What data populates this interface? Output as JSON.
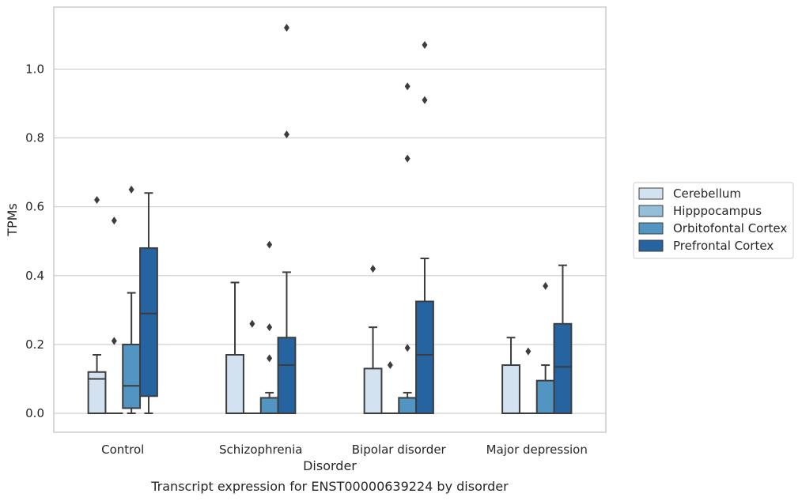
{
  "caption": "Transcript expression for ENST00000639224 by disorder",
  "chart_data": {
    "type": "box",
    "xlabel": "Disorder",
    "ylabel": "TPMs",
    "categories": [
      "Control",
      "Schizophrenia",
      "Bipolar disorder",
      "Major depression"
    ],
    "ylim": [
      -0.055,
      1.18
    ],
    "yticks": [
      0.0,
      0.2,
      0.4,
      0.6,
      0.8,
      1.0
    ],
    "ytick_labels": [
      "0.0",
      "0.2",
      "0.4",
      "0.6",
      "0.8",
      "1.0"
    ],
    "grid": true,
    "legend_position": "right",
    "colors": [
      "#d3e2f1",
      "#93bfdb",
      "#5295c3",
      "#2563a1"
    ],
    "series": [
      {
        "name": "Cerebellum",
        "boxes": [
          {
            "whislo": 0,
            "q1": 0,
            "med": 0.1,
            "q3": 0.12,
            "whishi": 0.17,
            "fliers": [
              0.62
            ]
          },
          {
            "whislo": 0,
            "q1": 0,
            "med": 0.0,
            "q3": 0.17,
            "whishi": 0.38,
            "fliers": []
          },
          {
            "whislo": 0,
            "q1": 0,
            "med": 0.0,
            "q3": 0.13,
            "whishi": 0.25,
            "fliers": [
              0.42
            ]
          },
          {
            "whislo": 0,
            "q1": 0,
            "med": 0.0,
            "q3": 0.14,
            "whishi": 0.22,
            "fliers": []
          }
        ]
      },
      {
        "name": "Hipppocampus",
        "boxes": [
          {
            "whislo": 0,
            "q1": 0,
            "med": 0,
            "q3": 0,
            "whishi": 0,
            "fliers": [
              0.21,
              0.56
            ]
          },
          {
            "whislo": 0,
            "q1": 0,
            "med": 0,
            "q3": 0,
            "whishi": 0,
            "fliers": [
              0.26
            ]
          },
          {
            "whislo": 0,
            "q1": 0,
            "med": 0,
            "q3": 0,
            "whishi": 0,
            "fliers": [
              0.14
            ]
          },
          {
            "whislo": 0,
            "q1": 0,
            "med": 0,
            "q3": 0,
            "whishi": 0,
            "fliers": [
              0.18
            ]
          }
        ]
      },
      {
        "name": "Orbitofontal Cortex",
        "boxes": [
          {
            "whislo": 0,
            "q1": 0.015,
            "med": 0.08,
            "q3": 0.2,
            "whishi": 0.35,
            "fliers": [
              0.65
            ]
          },
          {
            "whislo": 0,
            "q1": 0,
            "med": 0.0,
            "q3": 0.045,
            "whishi": 0.06,
            "fliers": [
              0.16,
              0.25,
              0.49
            ]
          },
          {
            "whislo": 0,
            "q1": 0,
            "med": 0.0,
            "q3": 0.045,
            "whishi": 0.06,
            "fliers": [
              0.19,
              0.74,
              0.95
            ]
          },
          {
            "whislo": 0,
            "q1": 0,
            "med": 0.0,
            "q3": 0.095,
            "whishi": 0.14,
            "fliers": [
              0.37
            ]
          }
        ]
      },
      {
        "name": "Prefrontal Cortex",
        "boxes": [
          {
            "whislo": 0,
            "q1": 0.05,
            "med": 0.29,
            "q3": 0.48,
            "whishi": 0.64,
            "fliers": []
          },
          {
            "whislo": 0,
            "q1": 0,
            "med": 0.14,
            "q3": 0.22,
            "whishi": 0.41,
            "fliers": [
              0.81,
              1.12
            ]
          },
          {
            "whislo": 0,
            "q1": 0,
            "med": 0.17,
            "q3": 0.325,
            "whishi": 0.45,
            "fliers": [
              0.91,
              1.07
            ]
          },
          {
            "whislo": 0,
            "q1": 0,
            "med": 0.135,
            "q3": 0.26,
            "whishi": 0.43,
            "fliers": []
          }
        ]
      }
    ]
  }
}
